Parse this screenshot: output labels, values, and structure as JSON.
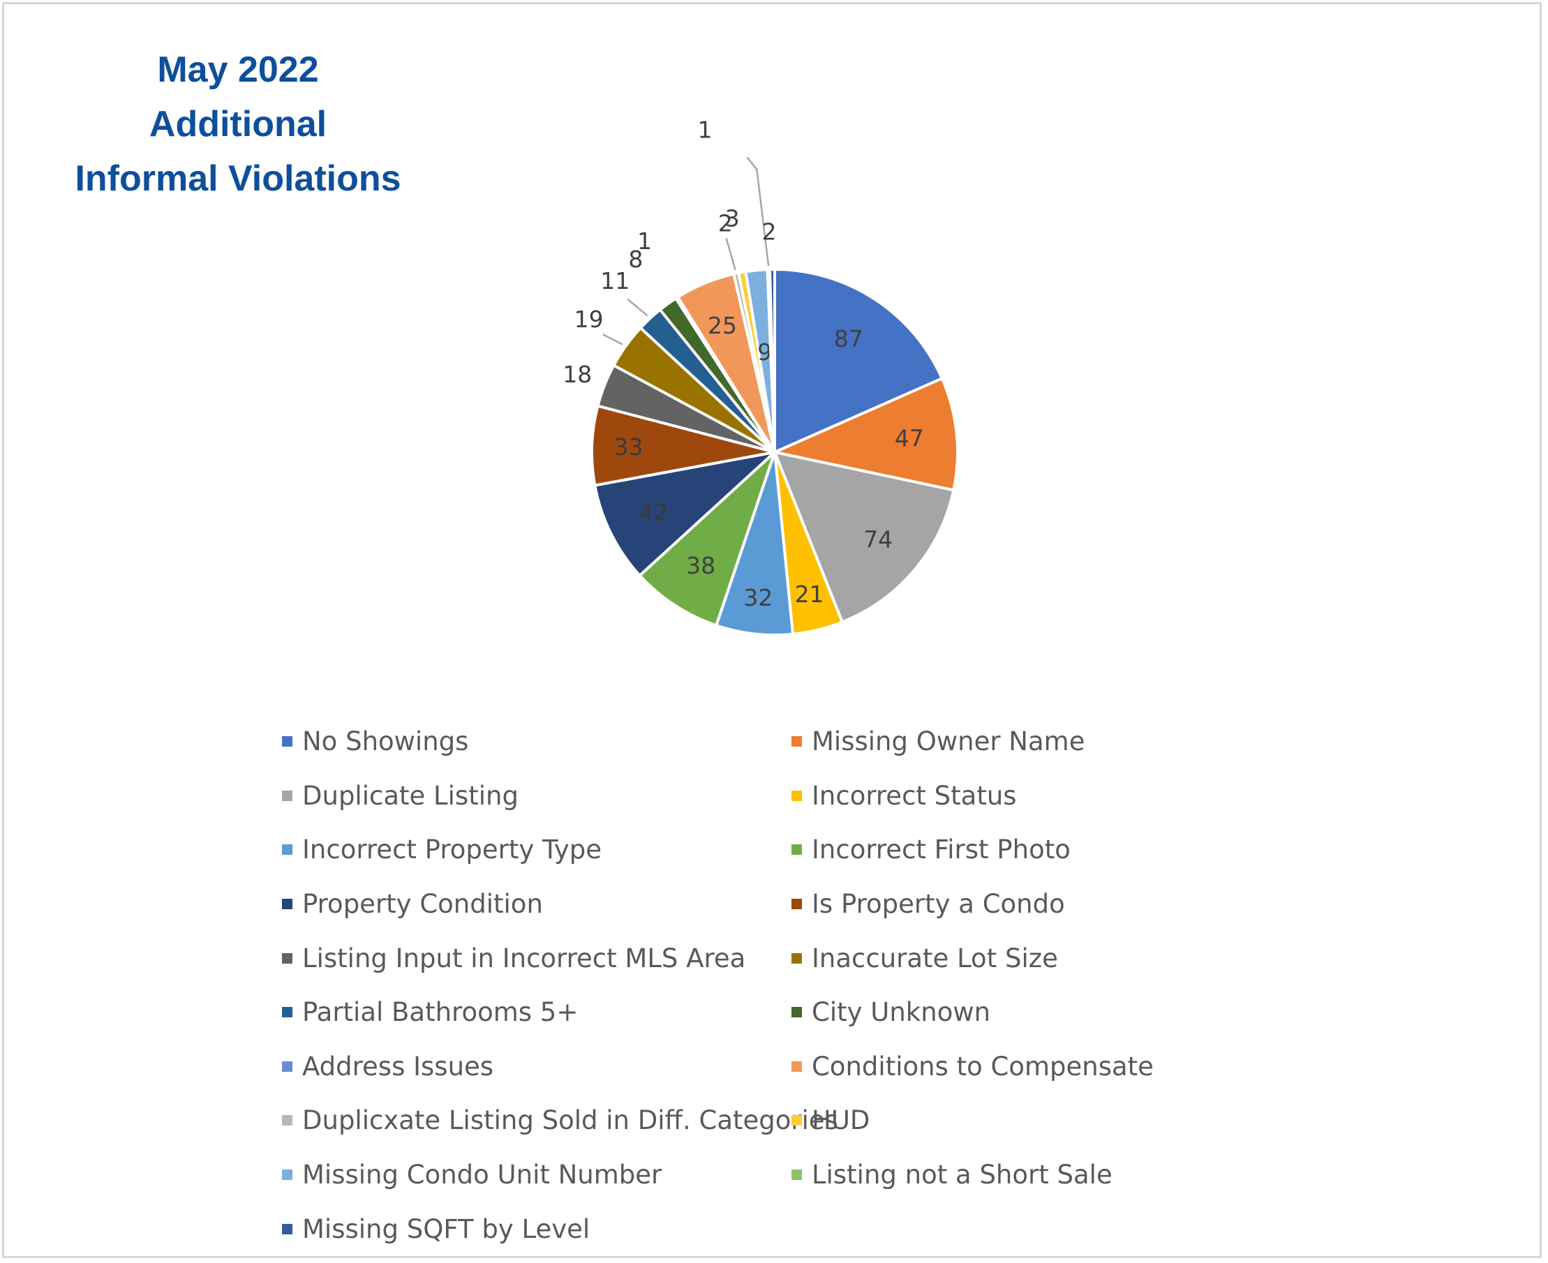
{
  "chart_data": {
    "type": "pie",
    "title": "May 2022\nAdditional\nInformal Violations",
    "legend_position": "bottom",
    "slices": [
      {
        "label": "No Showings",
        "value": 87,
        "color": "#4472c4"
      },
      {
        "label": "Missing Owner Name",
        "value": 47,
        "color": "#ed7d31"
      },
      {
        "label": "Duplicate Listing",
        "value": 74,
        "color": "#a5a5a5"
      },
      {
        "label": "Incorrect Status",
        "value": 21,
        "color": "#ffc000"
      },
      {
        "label": "Incorrect Property Type",
        "value": 32,
        "color": "#5b9bd5"
      },
      {
        "label": "Incorrect First Photo",
        "value": 38,
        "color": "#70ad47"
      },
      {
        "label": "Property Condition",
        "value": 42,
        "color": "#264478"
      },
      {
        "label": "Is Property a Condo",
        "value": 33,
        "color": "#9e480e"
      },
      {
        "label": "Listing Input in Incorrect MLS Area",
        "value": 18,
        "color": "#636363"
      },
      {
        "label": "Inaccurate Lot Size",
        "value": 19,
        "color": "#997300"
      },
      {
        "label": "Partial Bathrooms 5+",
        "value": 11,
        "color": "#255e91"
      },
      {
        "label": "City Unknown",
        "value": 8,
        "color": "#43682b"
      },
      {
        "label": "Address Issues",
        "value": 1,
        "color": "#698ed0"
      },
      {
        "label": "Conditions to Compensate",
        "value": 25,
        "color": "#f1975a"
      },
      {
        "label": "Duplicxate Listing Sold in Diff. Categories",
        "value": 2,
        "color": "#b7b7b7"
      },
      {
        "label": "HUD",
        "value": 3,
        "color": "#ffcd33"
      },
      {
        "label": "Missing Condo Unit Number",
        "value": 9,
        "color": "#7cafdd"
      },
      {
        "label": "Listing not a Short Sale",
        "value": 1,
        "color": "#8cc168"
      },
      {
        "label": "Missing SQFT by Level",
        "value": 2,
        "color": "#335aa1"
      }
    ]
  }
}
